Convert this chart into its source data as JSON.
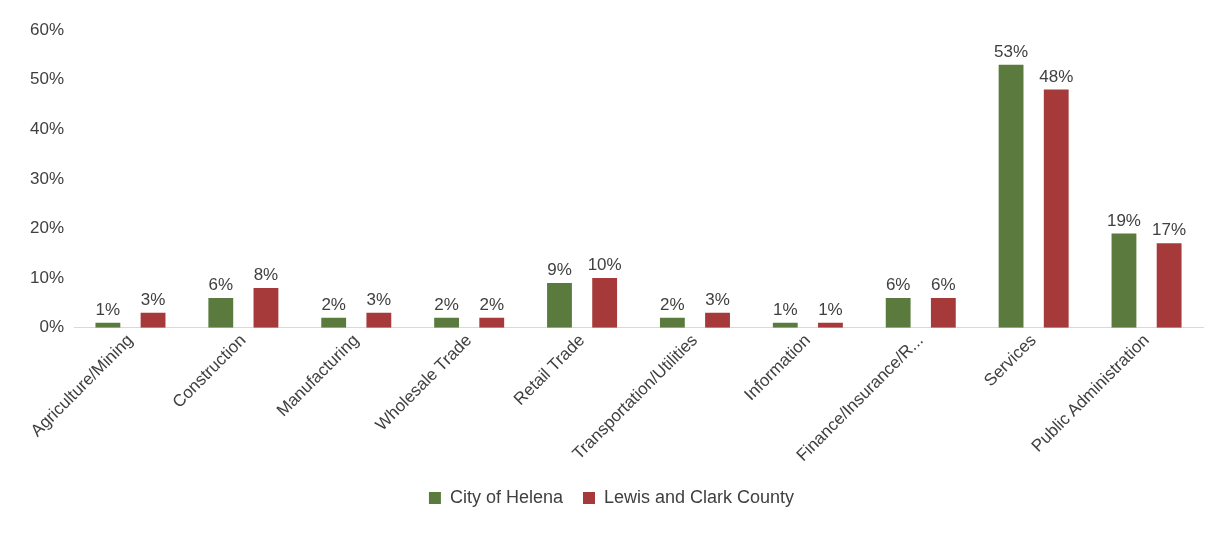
{
  "chart_data": {
    "type": "bar",
    "categories": [
      "Agriculture/Mining",
      "Construction",
      "Manufacturing",
      "Wholesale Trade",
      "Retail Trade",
      "Transportation/Utilities",
      "Information",
      "Finance/Insurance/R...",
      "Services",
      "Public Administration"
    ],
    "series": [
      {
        "name": "City of Helena",
        "color": "#5b7b3e",
        "values": [
          1,
          6,
          2,
          2,
          9,
          2,
          1,
          6,
          53,
          19
        ],
        "value_labels": [
          "1%",
          "6%",
          "2%",
          "2%",
          "9%",
          "2%",
          "1%",
          "6%",
          "53%",
          "19%"
        ]
      },
      {
        "name": "Lewis and Clark County",
        "color": "#a63a3a",
        "values": [
          3,
          8,
          3,
          2,
          10,
          3,
          1,
          6,
          48,
          17
        ],
        "value_labels": [
          "3%",
          "8%",
          "3%",
          "2%",
          "10%",
          "3%",
          "1%",
          "6%",
          "48%",
          "17%"
        ]
      }
    ],
    "ylim": [
      0,
      60
    ],
    "yticks": [
      {
        "value": 0,
        "label": "0%"
      },
      {
        "value": 10,
        "label": "10%"
      },
      {
        "value": 20,
        "label": "20%"
      },
      {
        "value": 30,
        "label": "30%"
      },
      {
        "value": 40,
        "label": "40%"
      },
      {
        "value": 50,
        "label": "50%"
      },
      {
        "value": 60,
        "label": "60%"
      }
    ],
    "grid": false,
    "legend": "bottom"
  }
}
